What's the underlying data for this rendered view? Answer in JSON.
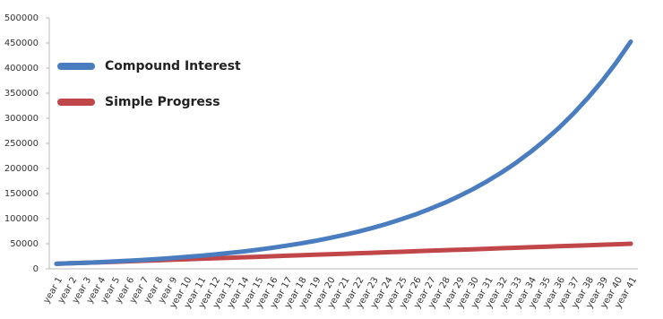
{
  "chart_data": {
    "type": "line",
    "categories": [
      "year 1",
      "year 2",
      "year 3",
      "year 4",
      "year 5",
      "year 6",
      "year 7",
      "year 8",
      "year 9",
      "year 10",
      "year 11",
      "year 12",
      "year 13",
      "year 14",
      "year 15",
      "year 16",
      "year 17",
      "year 18",
      "year 19",
      "year 20",
      "year 21",
      "year 22",
      "year 23",
      "year 24",
      "year 25",
      "year 26",
      "year 27",
      "year 28",
      "year 29",
      "year 30",
      "year 31",
      "year 32",
      "year 33",
      "year 34",
      "year 35",
      "year 36",
      "year 37",
      "year 38",
      "year 39",
      "year 40",
      "year 41"
    ],
    "series": [
      {
        "name": "Compound Interest",
        "color": "#4a7dc0",
        "values": [
          10000,
          11000,
          12100,
          13300,
          14600,
          16100,
          17700,
          19500,
          21400,
          23600,
          25900,
          28500,
          31400,
          34500,
          38000,
          41800,
          46000,
          50500,
          55600,
          61200,
          67300,
          74000,
          81400,
          89500,
          98500,
          108300,
          119200,
          131100,
          144200,
          158600,
          174500,
          191900,
          211100,
          232300,
          255500,
          281000,
          309100,
          340000,
          374000,
          411400,
          452600
        ]
      },
      {
        "name": "Simple Progress",
        "color": "#c0464a",
        "values": [
          10000,
          11000,
          12000,
          13000,
          14000,
          15000,
          16000,
          17000,
          18000,
          19000,
          20000,
          21000,
          22000,
          23000,
          24000,
          25000,
          26000,
          27000,
          28000,
          29000,
          30000,
          31000,
          32000,
          33000,
          34000,
          35000,
          36000,
          37000,
          38000,
          39000,
          40000,
          41000,
          42000,
          43000,
          44000,
          45000,
          46000,
          47000,
          48000,
          49000,
          50000
        ]
      }
    ],
    "ylim": [
      0,
      500000
    ],
    "yticks": [
      0,
      50000,
      100000,
      150000,
      200000,
      250000,
      300000,
      350000,
      400000,
      450000,
      500000
    ],
    "grid": false
  }
}
